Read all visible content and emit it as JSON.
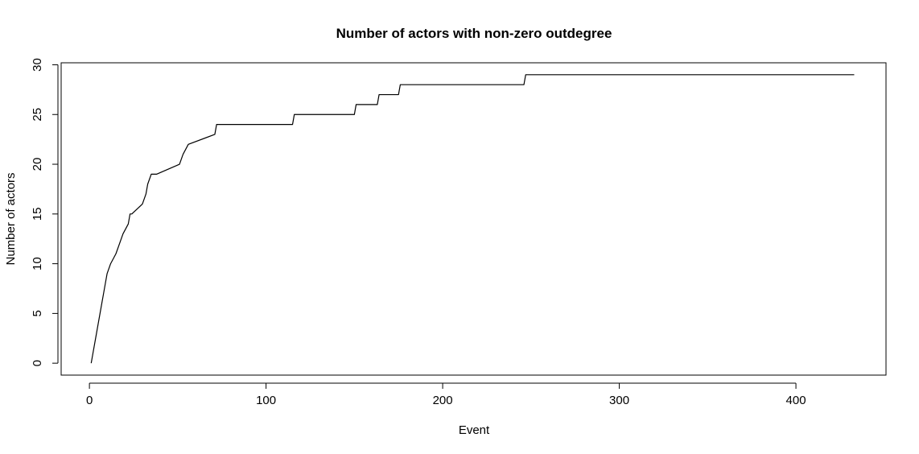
{
  "chart_data": {
    "type": "line",
    "title": "Number of actors with non-zero outdegree",
    "xlabel": "Event",
    "ylabel": "Number of actors",
    "xlim": [
      -16,
      451
    ],
    "ylim": [
      -1.2,
      30.2
    ],
    "xticks": [
      0,
      100,
      200,
      300,
      400
    ],
    "yticks": [
      0,
      5,
      10,
      15,
      20,
      25,
      30
    ],
    "grid": false,
    "legend": "none",
    "line_color": "#000000",
    "series": [
      {
        "step": "pre",
        "x": [
          1,
          2,
          3,
          4,
          5,
          6,
          7,
          8,
          9,
          10,
          12,
          15,
          17,
          19,
          22,
          23,
          24,
          30,
          32,
          33,
          35,
          38,
          51,
          53,
          56,
          71,
          72,
          115,
          116,
          150,
          151,
          163,
          164,
          175,
          176,
          246,
          247,
          433
        ],
        "y": [
          0,
          1,
          2,
          3,
          4,
          5,
          6,
          7,
          8,
          9,
          10,
          11,
          12,
          13,
          14,
          15,
          15,
          16,
          17,
          18,
          19,
          19,
          20,
          21,
          22,
          23,
          24,
          24,
          25,
          25,
          26,
          26,
          27,
          27,
          28,
          28,
          29,
          29
        ]
      }
    ]
  }
}
